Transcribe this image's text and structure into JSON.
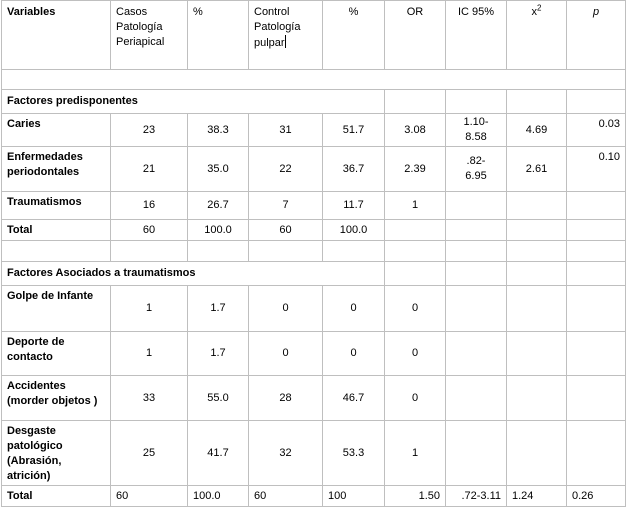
{
  "headers": {
    "variables": "Variables",
    "casos": "Casos\nPatología\nPeriapical",
    "pct1": "%",
    "control": "Control\nPatología\npulpar",
    "pct2": "%",
    "or": "OR",
    "ic": "IC 95%",
    "chi": "x",
    "chi_sup": "2",
    "p": "p"
  },
  "sections": {
    "predisponentes": "Factores predisponentes",
    "traumatismos": "Factores Asociados a traumatismos"
  },
  "rows_a": [
    {
      "label": "Caries",
      "casos": "23",
      "pct1": "38.3",
      "control": "31",
      "pct2": "51.7",
      "or": "3.08",
      "ic": "1.10-\n8.58",
      "chi": "4.69",
      "p": "0.03"
    },
    {
      "label": "Enfermedades\nperiodontales",
      "casos": "21",
      "pct1": "35.0",
      "control": "22",
      "pct2": "36.7",
      "or": "2.39",
      "ic": ".82-\n6.95",
      "chi": "2.61",
      "p": "0.10"
    },
    {
      "label": "Traumatismos",
      "casos": "16",
      "pct1": "26.7",
      "control": "7",
      "pct2": "11.7",
      "or": "1",
      "ic": "",
      "chi": "",
      "p": ""
    },
    {
      "label": "Total",
      "casos": "60",
      "pct1": "100.0",
      "control": "60",
      "pct2": "100.0",
      "or": "",
      "ic": "",
      "chi": "",
      "p": ""
    }
  ],
  "rows_b": [
    {
      "label": "Golpe de Infante",
      "casos": "1",
      "pct1": "1.7",
      "control": "0",
      "pct2": "0",
      "or": "0",
      "ic": "",
      "chi": "",
      "p": ""
    },
    {
      "label": "Deporte de\ncontacto",
      "casos": "1",
      "pct1": "1.7",
      "control": "0",
      "pct2": "0",
      "or": "0",
      "ic": "",
      "chi": "",
      "p": ""
    },
    {
      "label": "Accidentes\n(morder objetos )",
      "casos": "33",
      "pct1": "55.0",
      "control": "28",
      "pct2": "46.7",
      "or": "0",
      "ic": "",
      "chi": "",
      "p": ""
    },
    {
      "label": "Desgaste\npatológico\n(Abrasión,\natrición)",
      "casos": "25",
      "pct1": "41.7",
      "control": "32",
      "pct2": "53.3",
      "or": "1",
      "ic": "",
      "chi": "",
      "p": ""
    }
  ],
  "total": {
    "label": "Total",
    "casos": "60",
    "pct1": "100.0",
    "control": "60",
    "pct2": "100",
    "or": "1.50",
    "ic": ".72-3.11",
    "chi": "1.24",
    "p": "0.26"
  }
}
